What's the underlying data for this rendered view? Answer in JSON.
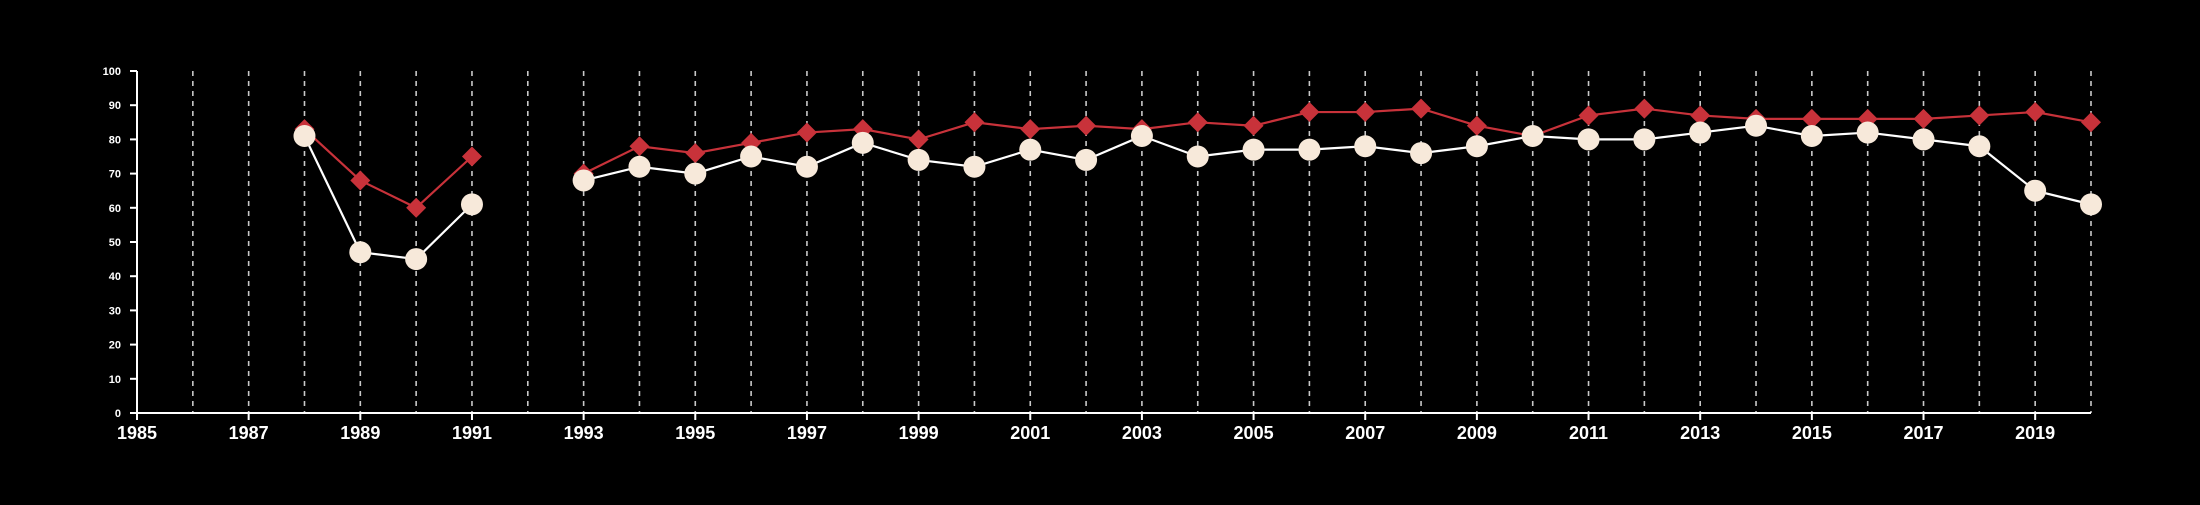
{
  "chart_data": {
    "type": "line",
    "title": "",
    "xlabel": "",
    "ylabel": "",
    "xlim": [
      1985,
      2020
    ],
    "ylim": [
      0,
      100
    ],
    "y_ticks": [
      "0",
      "10",
      "20",
      "30",
      "40",
      "50",
      "60",
      "70",
      "80",
      "90",
      "100"
    ],
    "x_tick_labels": [
      "1985",
      "1987",
      "1989",
      "1991",
      "1993",
      "1995",
      "1997",
      "1999",
      "2001",
      "2003",
      "2005",
      "2007",
      "2009",
      "2011",
      "2013",
      "2015",
      "2017",
      "2019"
    ],
    "x_tick_values": [
      1985,
      1987,
      1989,
      1991,
      1993,
      1995,
      1997,
      1999,
      2001,
      2003,
      2005,
      2007,
      2009,
      2011,
      2013,
      2015,
      2017,
      2019
    ],
    "vertical_grid_years": [
      1986,
      1987,
      1988,
      1989,
      1990,
      1991,
      1992,
      1993,
      1994,
      1995,
      1996,
      1997,
      1998,
      1999,
      2000,
      2001,
      2002,
      2003,
      2004,
      2005,
      2006,
      2007,
      2008,
      2009,
      2010,
      2011,
      2012,
      2013,
      2014,
      2015,
      2016,
      2017,
      2018,
      2019,
      2020
    ],
    "grid": {
      "vertical": true,
      "horizontal": false
    },
    "legend": "none",
    "x": [
      1988,
      1989,
      1990,
      1991,
      1992,
      1993,
      1994,
      1995,
      1996,
      1997,
      1998,
      1999,
      2000,
      2001,
      2002,
      2003,
      2004,
      2005,
      2006,
      2007,
      2008,
      2009,
      2010,
      2011,
      2012,
      2013,
      2014,
      2015,
      2016,
      2017,
      2018,
      2019,
      2020
    ],
    "series": [
      {
        "marker": "diamond",
        "color": "#c8323a",
        "values": [
          83,
          68,
          60,
          75,
          null,
          70,
          78,
          76,
          79,
          82,
          83,
          80,
          85,
          83,
          84,
          83,
          85,
          84,
          88,
          88,
          89,
          84,
          81,
          87,
          89,
          87,
          86,
          86,
          86,
          86,
          87,
          88,
          85
        ]
      },
      {
        "marker": "circle",
        "color": "#f7e9da",
        "line_color": "#ffffff",
        "values": [
          81,
          47,
          45,
          61,
          null,
          68,
          72,
          70,
          75,
          72,
          79,
          74,
          72,
          77,
          74,
          81,
          75,
          77,
          77,
          78,
          76,
          78,
          81,
          80,
          80,
          82,
          84,
          81,
          82,
          80,
          78,
          65,
          61
        ]
      }
    ]
  }
}
